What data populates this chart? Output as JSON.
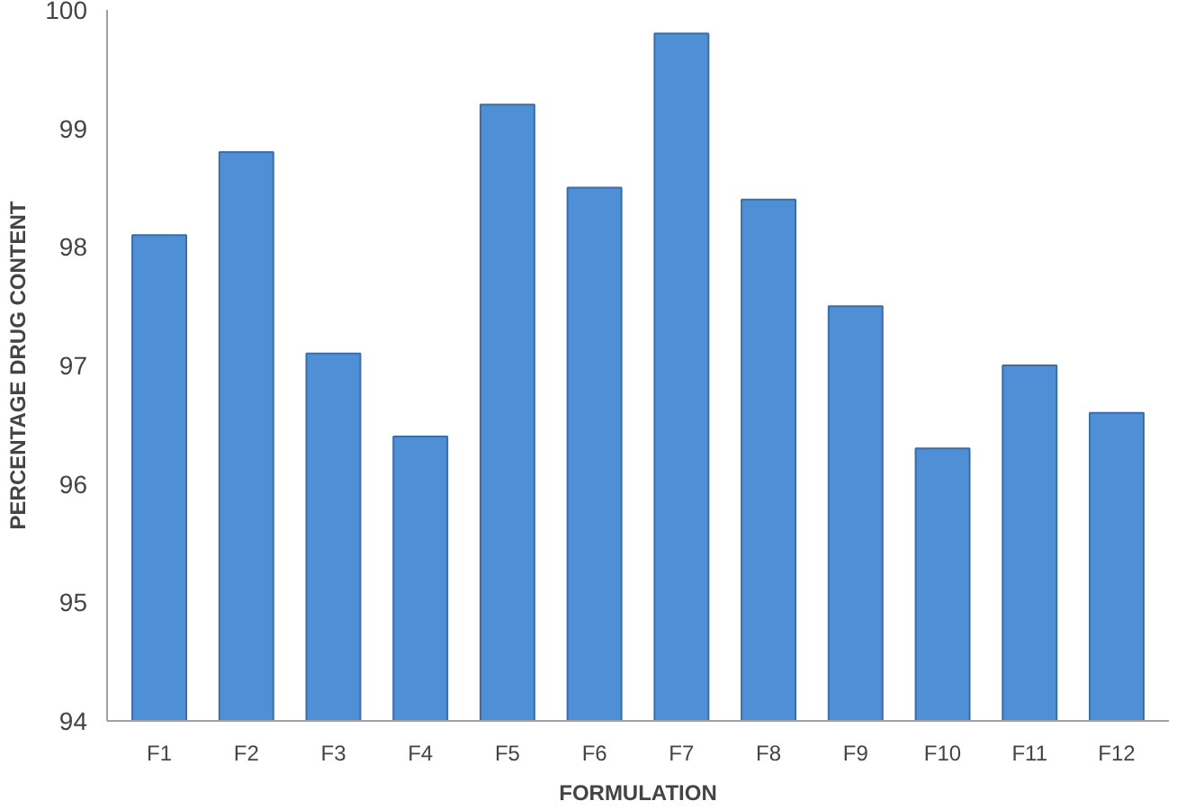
{
  "chart_data": {
    "type": "bar",
    "xlabel": "FORMULATION",
    "ylabel": "PERCENTAGE DRUG CONTENT",
    "categories": [
      "F1",
      "F2",
      "F3",
      "F4",
      "F5",
      "F6",
      "F7",
      "F8",
      "F9",
      "F10",
      "F11",
      "F12"
    ],
    "values": [
      98.1,
      98.8,
      97.1,
      96.4,
      99.2,
      98.5,
      99.8,
      98.4,
      97.5,
      96.3,
      97.0,
      96.6
    ],
    "color": "#4f8fd6",
    "ylim": [
      94,
      100
    ],
    "yticks": [
      94,
      95,
      96,
      97,
      98,
      99,
      100
    ],
    "grid": false
  }
}
